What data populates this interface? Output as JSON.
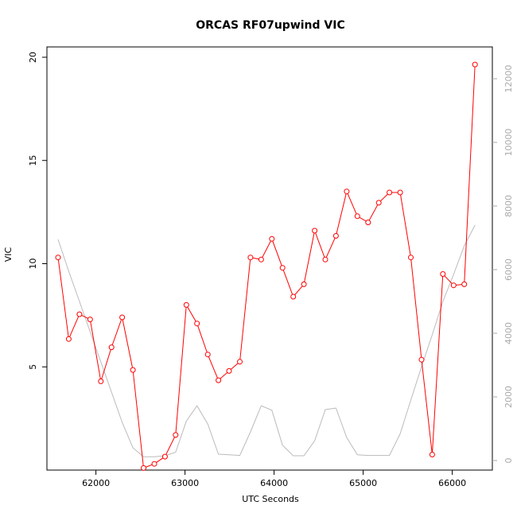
{
  "chart_data": {
    "type": "line",
    "title": "ORCAS RF07upwind VIC",
    "xlabel": "UTC Seconds",
    "ylabel": "VIC",
    "xlim": [
      61450,
      66450
    ],
    "ylim": [
      0,
      20.5
    ],
    "y2lim": [
      -300,
      13000
    ],
    "x_ticks": [
      62000,
      63000,
      64000,
      65000,
      66000
    ],
    "y_ticks": [
      5,
      10,
      15,
      20
    ],
    "y2_ticks": [
      0,
      2000,
      4000,
      6000,
      8000,
      10000,
      12000
    ],
    "grid": false,
    "series": [
      {
        "axis": "left",
        "color": "#ff0000",
        "marker": "open-circle",
        "x": [
          61575,
          61695,
          61815,
          61935,
          62055,
          62175,
          62295,
          62415,
          62535,
          62655,
          62775,
          62895,
          63015,
          63135,
          63255,
          63375,
          63495,
          63615,
          63735,
          63855,
          63975,
          64095,
          64215,
          64335,
          64455,
          64575,
          64695,
          64815,
          64935,
          65055,
          65175,
          65295,
          65415,
          65535,
          65655,
          65775,
          65895,
          66015,
          66135,
          66255
        ],
        "values": [
          10.3,
          6.35,
          7.55,
          7.3,
          4.3,
          5.95,
          7.4,
          4.85,
          0.1,
          0.3,
          0.65,
          1.7,
          8.0,
          7.1,
          5.6,
          4.35,
          4.8,
          5.25,
          10.3,
          10.2,
          11.2,
          9.8,
          8.4,
          9.0,
          11.6,
          10.2,
          11.35,
          13.5,
          12.3,
          12.0,
          12.95,
          13.45,
          13.45,
          10.3,
          5.35,
          0.75,
          9.5,
          8.95,
          9.0,
          19.65
        ]
      },
      {
        "axis": "right",
        "color": "#bbbbbb",
        "marker": "none",
        "x": [
          61575,
          61695,
          61815,
          61935,
          62055,
          62175,
          62295,
          62415,
          62535,
          62655,
          62775,
          62895,
          63015,
          63135,
          63255,
          63375,
          63495,
          63615,
          63735,
          63855,
          63975,
          64095,
          64215,
          64335,
          64455,
          64575,
          64695,
          64815,
          64935,
          65055,
          65175,
          65295,
          65415,
          65535,
          65655,
          65775,
          65895,
          66015,
          66135,
          66255
        ],
        "values": [
          6950,
          5950,
          5000,
          4050,
          3100,
          2150,
          1200,
          400,
          120,
          120,
          150,
          260,
          1240,
          1720,
          1150,
          200,
          180,
          160,
          900,
          1720,
          1580,
          480,
          150,
          150,
          620,
          1600,
          1650,
          720,
          180,
          160,
          160,
          160,
          840,
          1900,
          2950,
          3950,
          5000,
          5850,
          6750,
          7400
        ]
      }
    ]
  }
}
